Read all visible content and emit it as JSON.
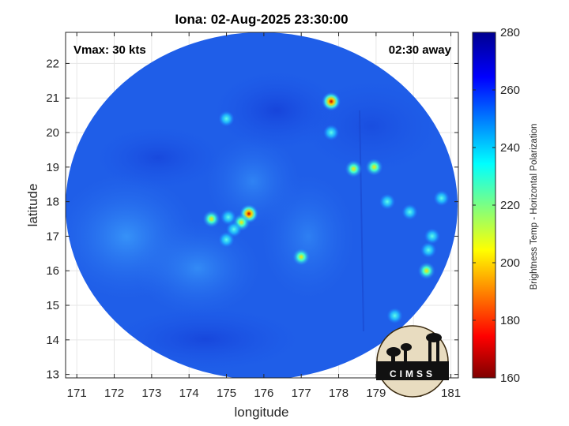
{
  "title": "Iona: 02-Aug-2025 23:30:00",
  "annotations": {
    "vmax": "Vmax: 30 kts",
    "time_away": "02:30 away"
  },
  "map": {
    "xlabel": "longitude",
    "ylabel": "latitude",
    "x_ticks": [
      "171",
      "172",
      "173",
      "174",
      "175",
      "176",
      "177",
      "178",
      "179",
      "180",
      "181"
    ],
    "y_ticks": [
      "13",
      "14",
      "15",
      "16",
      "17",
      "18",
      "19",
      "20",
      "21",
      "22"
    ],
    "xlim": [
      170.7,
      181.2
    ],
    "ylim": [
      12.9,
      22.9
    ],
    "grid": true
  },
  "colorbar": {
    "label": "Brightness Temp - Horizontal Polarization",
    "ticks": [
      "160",
      "180",
      "200",
      "220",
      "240",
      "260",
      "280"
    ],
    "range": [
      160,
      280
    ],
    "colormap": [
      "#7f0000",
      "#ff0000",
      "#ffff00",
      "#00ffff",
      "#0000ff",
      "#00008f"
    ]
  },
  "logo": {
    "text": "CIMSS"
  },
  "chart_data": {
    "type": "heatmap",
    "title": "Iona: 02-Aug-2025 23:30:00",
    "xlabel": "longitude",
    "ylabel": "latitude",
    "xlim": [
      170.7,
      181.2
    ],
    "ylim": [
      12.9,
      22.9
    ],
    "colorbar_label": "Brightness Temp - Horizontal Polarization",
    "colorbar_range": [
      160,
      280
    ],
    "swath_center": [
      176,
      17.95
    ],
    "swath_radius_lon": 5.7,
    "background_temperature": 258,
    "features": [
      {
        "lon": 175.6,
        "lat": 17.65,
        "tb": 178
      },
      {
        "lon": 175.4,
        "lat": 17.4,
        "tb": 210
      },
      {
        "lon": 175.2,
        "lat": 17.2,
        "tb": 222
      },
      {
        "lon": 175.0,
        "lat": 16.9,
        "tb": 225
      },
      {
        "lon": 174.6,
        "lat": 17.5,
        "tb": 206
      },
      {
        "lon": 175.05,
        "lat": 17.55,
        "tb": 218
      },
      {
        "lon": 177.0,
        "lat": 16.4,
        "tb": 214
      },
      {
        "lon": 177.8,
        "lat": 20.9,
        "tb": 180
      },
      {
        "lon": 177.8,
        "lat": 20.0,
        "tb": 226
      },
      {
        "lon": 178.4,
        "lat": 18.95,
        "tb": 215
      },
      {
        "lon": 178.95,
        "lat": 19.0,
        "tb": 210
      },
      {
        "lon": 180.35,
        "lat": 16.0,
        "tb": 200
      },
      {
        "lon": 180.4,
        "lat": 16.6,
        "tb": 222
      },
      {
        "lon": 180.5,
        "lat": 17.0,
        "tb": 226
      },
      {
        "lon": 180.75,
        "lat": 18.1,
        "tb": 218
      },
      {
        "lon": 179.9,
        "lat": 17.7,
        "tb": 232
      },
      {
        "lon": 179.3,
        "lat": 18.0,
        "tb": 234
      },
      {
        "lon": 175.0,
        "lat": 20.4,
        "tb": 236
      },
      {
        "lon": 179.5,
        "lat": 14.7,
        "tb": 234
      }
    ]
  }
}
